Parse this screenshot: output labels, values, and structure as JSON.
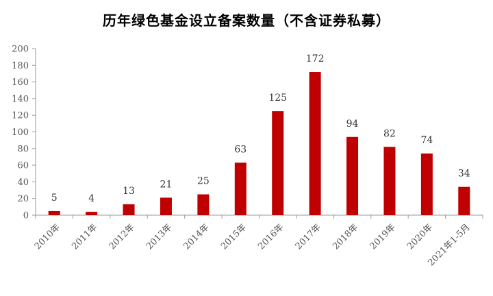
{
  "chart_data": {
    "type": "bar",
    "title": "历年绿色基金设立备案数量（不含证券私募）",
    "categories": [
      "2010年",
      "2011年",
      "2012年",
      "2013年",
      "2014年",
      "2015年",
      "2016年",
      "2017年",
      "2018年",
      "2019年",
      "2020年",
      "2021年1-5月"
    ],
    "values": [
      5,
      4,
      13,
      21,
      25,
      63,
      125,
      172,
      94,
      82,
      74,
      34
    ],
    "yticks": [
      0,
      20,
      40,
      60,
      80,
      100,
      120,
      140,
      160,
      180,
      200
    ],
    "ylim": [
      0,
      200
    ],
    "xlabel": "",
    "ylabel": "",
    "grid": false,
    "legend": "none",
    "bar_color": "#C00000"
  }
}
